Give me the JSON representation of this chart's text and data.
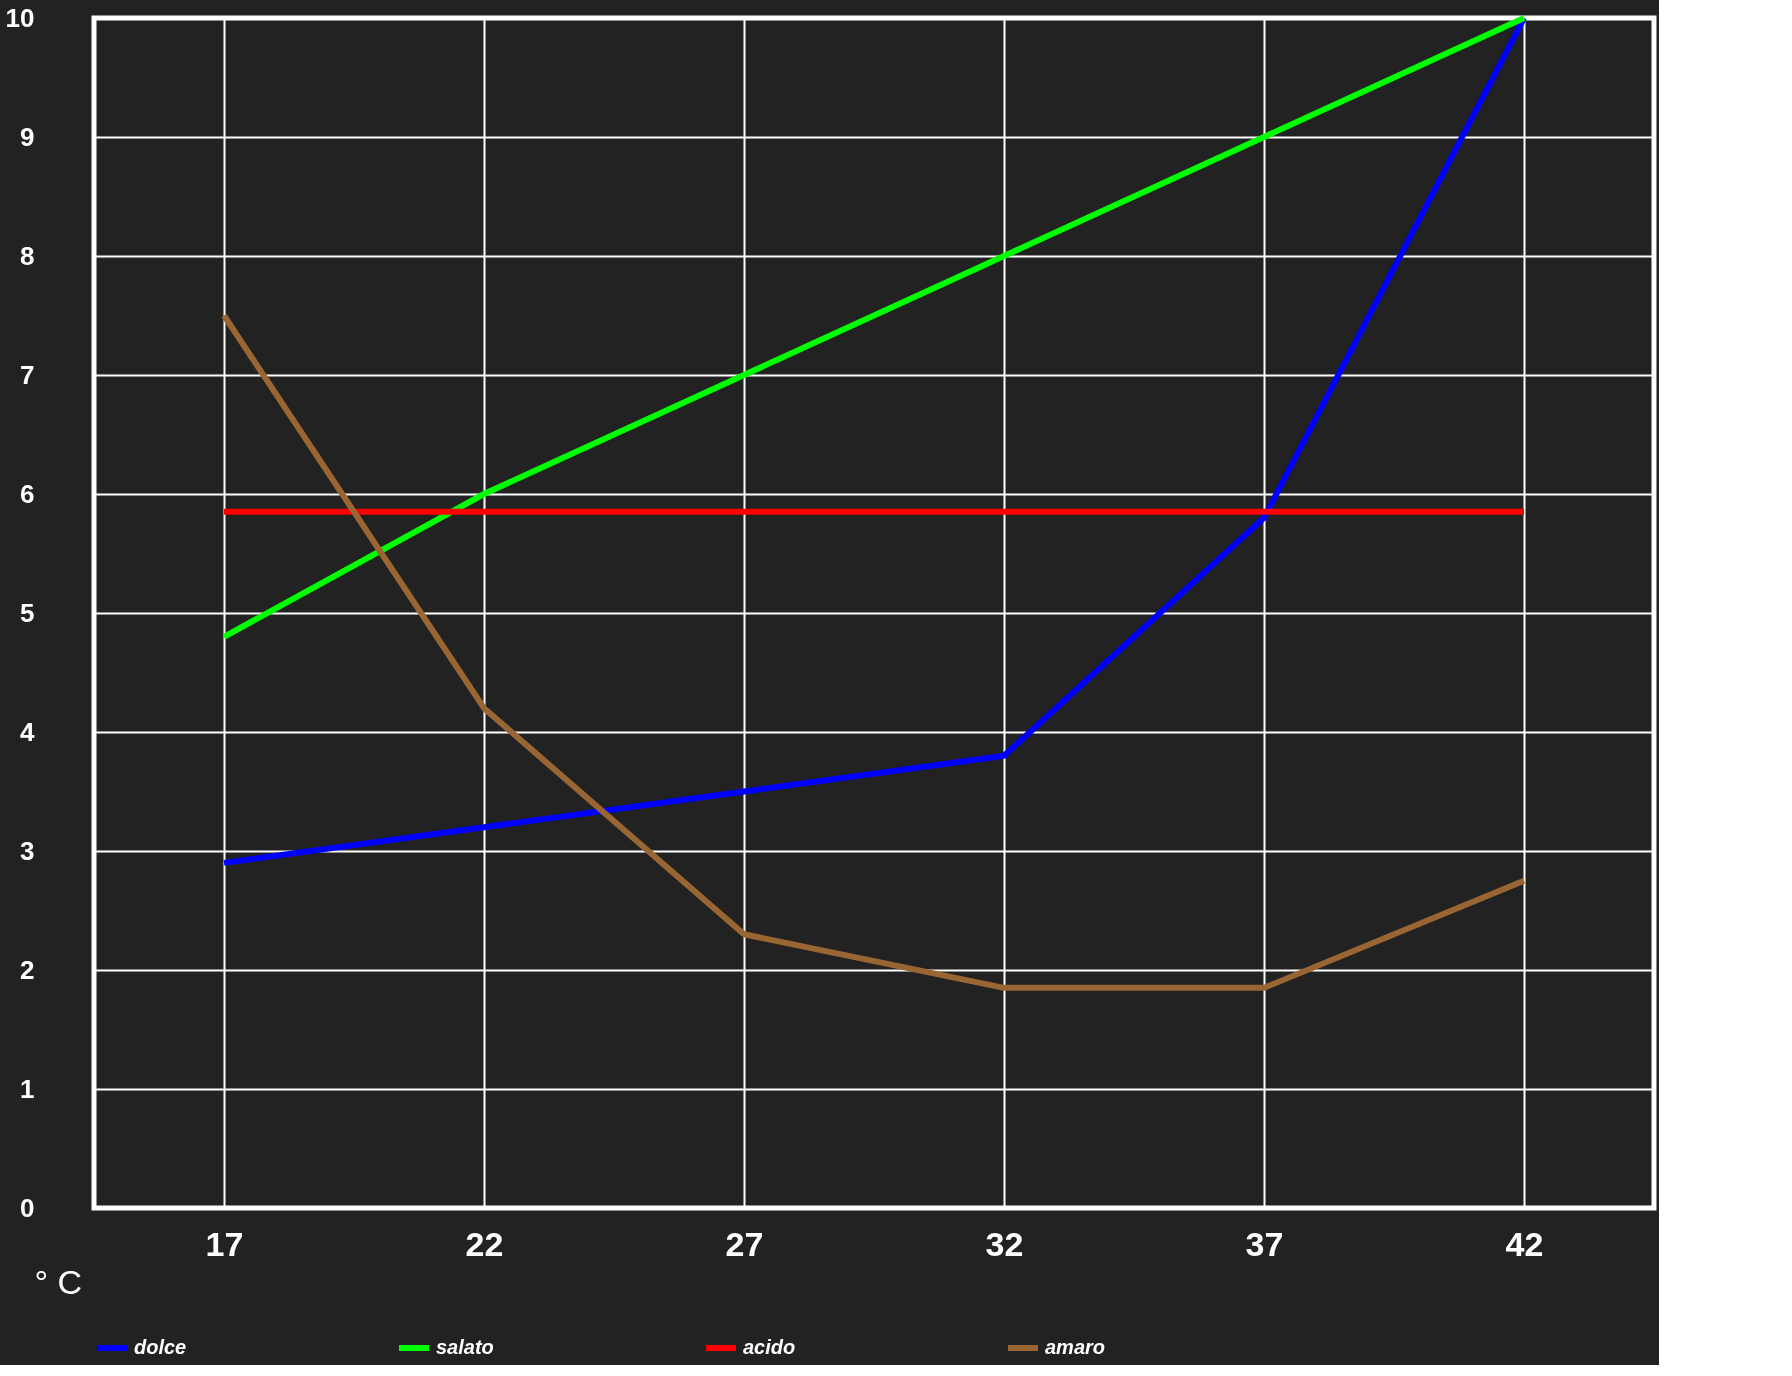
{
  "chart_data": {
    "type": "line",
    "xlabel": "° C",
    "categories": [
      "17",
      "22",
      "27",
      "32",
      "37",
      "42"
    ],
    "series": [
      {
        "name": "dolce",
        "color": "#0000ff",
        "values": [
          2.9,
          3.2,
          3.5,
          3.8,
          5.8,
          10
        ]
      },
      {
        "name": "salato",
        "color": "#00ff00",
        "values": [
          4.8,
          6.0,
          7.0,
          8.0,
          9.0,
          10.0
        ]
      },
      {
        "name": "acido",
        "color": "#ff0000",
        "values": [
          5.85,
          5.85,
          5.85,
          5.85,
          5.85,
          5.85
        ]
      },
      {
        "name": "amaro",
        "color": "#996633",
        "values": [
          7.5,
          4.2,
          2.3,
          1.85,
          1.85,
          2.75
        ]
      }
    ],
    "ylim": [
      0,
      10
    ],
    "yticks": [
      0,
      1,
      2,
      3,
      4,
      5,
      6,
      7,
      8,
      9,
      10
    ],
    "grid": true,
    "legend": "bottom",
    "marker": "none",
    "line_style": "solid"
  }
}
